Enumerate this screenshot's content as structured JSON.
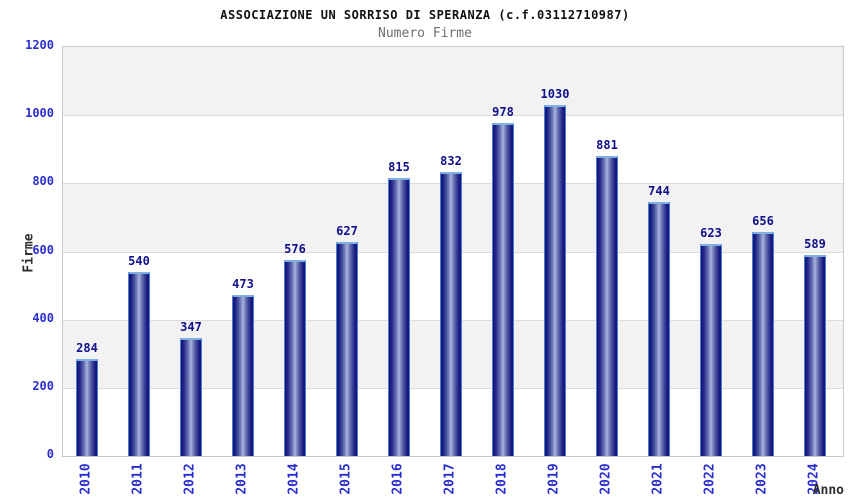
{
  "chart_data": {
    "type": "bar",
    "title": "ASSOCIAZIONE UN SORRISO DI SPERANZA (c.f.03112710987)",
    "subtitle": "Numero Firme",
    "xlabel": "Anno",
    "ylabel": "Firme",
    "categories": [
      "2010",
      "2011",
      "2012",
      "2013",
      "2014",
      "2015",
      "2016",
      "2017",
      "2018",
      "2019",
      "2020",
      "2021",
      "2022",
      "2023",
      "2024"
    ],
    "values": [
      284,
      540,
      347,
      473,
      576,
      627,
      815,
      832,
      978,
      1030,
      881,
      744,
      623,
      656,
      589
    ],
    "ylim": [
      0,
      1200
    ],
    "yticks": [
      0,
      200,
      400,
      600,
      800,
      1000,
      1200
    ],
    "legend": "none",
    "grid": "alternating-horizontal-bands",
    "colors": {
      "bar_dark": "#131378",
      "bar_mid": "#6570b2",
      "bar_light": "#aab3db",
      "bar_border": "#4c7fd6",
      "bar_top_cap": "#7fb0e4",
      "tick_label": "#2a2ecd",
      "value_label": "#10108e",
      "band_gray": "#f2f2f2",
      "band_white": "#ffffff",
      "gridline": "#dcdcdc",
      "plot_border": "#c9c9c9",
      "title": "#111111",
      "subtitle": "#6e6e6e",
      "axis_title": "#2e2e2e"
    }
  }
}
